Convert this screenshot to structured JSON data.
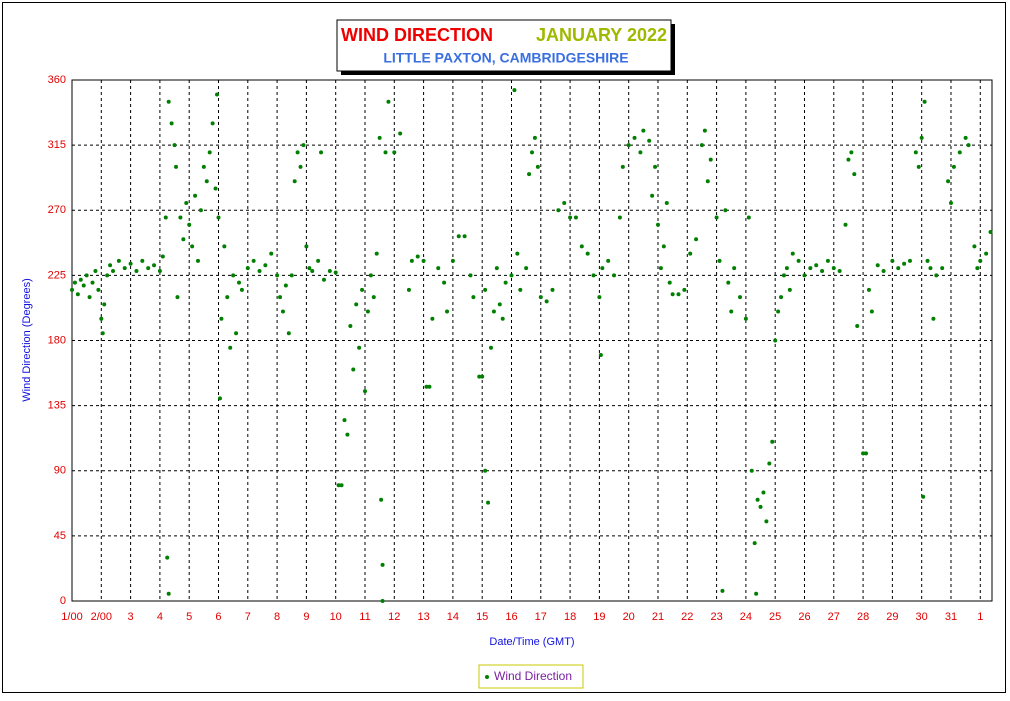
{
  "chart_data": {
    "type": "scatter",
    "title": "WIND DIRECTION",
    "title_date": "JANUARY 2022",
    "subtitle": "LITTLE PAXTON, CAMBRIDGESHIRE",
    "xlabel": "Date/Time (GMT)",
    "ylabel": "Wind Direction (Degrees)",
    "xlim": [
      1,
      32.4
    ],
    "xticks": [
      {
        "value": 1,
        "label": "1/00"
      },
      {
        "value": 2,
        "label": "2/00"
      },
      3,
      4,
      5,
      6,
      7,
      8,
      9,
      10,
      11,
      12,
      13,
      14,
      15,
      16,
      17,
      18,
      19,
      20,
      21,
      22,
      23,
      24,
      25,
      26,
      27,
      28,
      29,
      30,
      31,
      {
        "value": 32,
        "label": "1"
      }
    ],
    "ylim": [
      0,
      360
    ],
    "yticks": [
      0,
      45,
      90,
      135,
      180,
      225,
      270,
      315,
      360
    ],
    "grid": true,
    "legend": "bottom",
    "series": [
      {
        "name": "Wind Direction",
        "color": "#008000",
        "x": [
          1.0,
          1.1,
          1.2,
          1.3,
          1.4,
          1.5,
          1.6,
          1.7,
          1.8,
          1.9,
          2.0,
          2.05,
          2.1,
          2.2,
          2.3,
          2.4,
          2.6,
          2.8,
          3.0,
          3.2,
          3.4,
          3.6,
          3.8,
          4.0,
          4.1,
          4.2,
          4.25,
          4.3,
          4.3,
          4.4,
          4.5,
          4.55,
          4.6,
          4.7,
          4.8,
          4.9,
          5.0,
          5.1,
          5.2,
          5.3,
          5.4,
          5.5,
          5.6,
          5.7,
          5.8,
          5.9,
          5.95,
          6.0,
          6.05,
          6.1,
          6.2,
          6.3,
          6.4,
          6.5,
          6.6,
          6.7,
          6.8,
          7.0,
          7.2,
          7.4,
          7.6,
          7.8,
          8.0,
          8.1,
          8.2,
          8.3,
          8.4,
          8.5,
          8.6,
          8.7,
          8.8,
          8.9,
          9.0,
          9.1,
          9.2,
          9.4,
          9.5,
          9.6,
          9.8,
          10.0,
          10.1,
          10.2,
          10.3,
          10.4,
          10.5,
          10.6,
          10.7,
          10.8,
          10.9,
          11.0,
          11.1,
          11.2,
          11.3,
          11.4,
          11.5,
          11.55,
          11.6,
          11.6,
          11.7,
          11.8,
          12.0,
          12.2,
          12.5,
          12.6,
          12.8,
          13.0,
          13.1,
          13.2,
          13.3,
          13.5,
          13.7,
          13.8,
          14.0,
          14.2,
          14.4,
          14.6,
          14.7,
          14.9,
          15.0,
          15.1,
          15.1,
          15.2,
          15.3,
          15.4,
          15.5,
          15.6,
          15.7,
          15.8,
          16.0,
          16.1,
          16.2,
          16.3,
          16.5,
          16.6,
          16.7,
          16.8,
          16.9,
          17.0,
          17.2,
          17.4,
          17.6,
          17.8,
          18.0,
          18.2,
          18.4,
          18.6,
          18.8,
          19.0,
          19.05,
          19.1,
          19.3,
          19.5,
          19.7,
          19.8,
          20.0,
          20.2,
          20.4,
          20.5,
          20.7,
          20.8,
          20.9,
          21.0,
          21.1,
          21.2,
          21.3,
          21.4,
          21.5,
          21.7,
          21.9,
          22.1,
          22.3,
          22.5,
          22.6,
          22.7,
          22.8,
          23.0,
          23.1,
          23.2,
          23.3,
          23.4,
          23.5,
          23.6,
          23.8,
          24.0,
          24.1,
          24.2,
          24.3,
          24.35,
          24.4,
          24.5,
          24.6,
          24.7,
          24.8,
          24.9,
          25.0,
          25.1,
          25.2,
          25.3,
          25.4,
          25.5,
          25.6,
          25.8,
          26.0,
          26.2,
          26.4,
          26.6,
          26.8,
          27.0,
          27.2,
          27.4,
          27.5,
          27.6,
          27.7,
          27.8,
          28.0,
          28.1,
          28.2,
          28.3,
          28.5,
          28.7,
          29.0,
          29.2,
          29.4,
          29.6,
          29.8,
          29.9,
          30.0,
          30.05,
          30.1,
          30.2,
          30.3,
          30.4,
          30.5,
          30.7,
          30.9,
          31.0,
          31.1,
          31.3,
          31.5,
          31.6,
          31.8,
          31.9,
          32.0,
          32.2,
          32.35
        ],
        "values": [
          215,
          220,
          212,
          222,
          218,
          225,
          210,
          220,
          228,
          215,
          195,
          185,
          205,
          225,
          232,
          228,
          235,
          230,
          233,
          228,
          235,
          230,
          232,
          228,
          238,
          265,
          30,
          5,
          345,
          330,
          315,
          300,
          210,
          265,
          250,
          275,
          260,
          245,
          280,
          235,
          270,
          300,
          290,
          310,
          330,
          285,
          350,
          265,
          140,
          195,
          245,
          210,
          175,
          225,
          185,
          220,
          215,
          230,
          235,
          228,
          232,
          240,
          225,
          210,
          200,
          218,
          185,
          225,
          290,
          310,
          300,
          315,
          245,
          230,
          228,
          235,
          310,
          222,
          228,
          227,
          80,
          80,
          125,
          115,
          190,
          160,
          205,
          175,
          215,
          145,
          200,
          225,
          210,
          240,
          320,
          70,
          0,
          25,
          310,
          345,
          310,
          323,
          215,
          235,
          238,
          235,
          148,
          148,
          195,
          230,
          220,
          200,
          235,
          252,
          252,
          225,
          210,
          155,
          155,
          215,
          90,
          68,
          175,
          200,
          230,
          205,
          195,
          220,
          225,
          353,
          240,
          215,
          230,
          295,
          310,
          320,
          300,
          210,
          207,
          215,
          270,
          275,
          265,
          265,
          245,
          240,
          225,
          210,
          170,
          230,
          235,
          225,
          265,
          300,
          315,
          320,
          310,
          325,
          318,
          280,
          300,
          260,
          230,
          245,
          275,
          220,
          212,
          212,
          215,
          240,
          250,
          315,
          325,
          290,
          305,
          265,
          235,
          7,
          270,
          220,
          200,
          230,
          210,
          195,
          265,
          90,
          40,
          5,
          70,
          65,
          75,
          55,
          95,
          110,
          180,
          200,
          210,
          225,
          230,
          215,
          240,
          235,
          225,
          230,
          232,
          228,
          235,
          230,
          228,
          260,
          305,
          310,
          295,
          190,
          102,
          102,
          215,
          200,
          232,
          228,
          235,
          230,
          233,
          235,
          310,
          300,
          320,
          72,
          345,
          235,
          230,
          195,
          225,
          230,
          290,
          275,
          300,
          310,
          320,
          315,
          245,
          230,
          235,
          240,
          255
        ]
      }
    ]
  }
}
